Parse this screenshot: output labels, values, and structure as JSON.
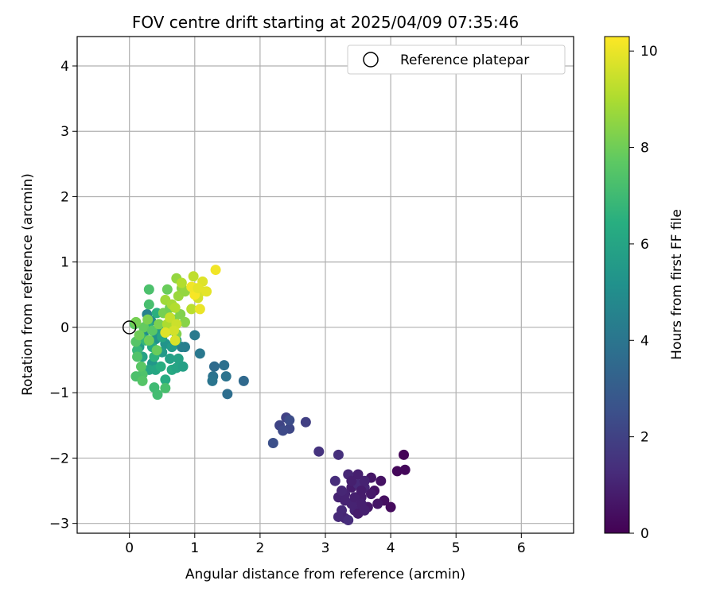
{
  "chart_data": {
    "type": "scatter",
    "title": "FOV centre drift starting at 2025/04/09 07:35:46",
    "xlabel": "Angular distance from reference (arcmin)",
    "ylabel": "Rotation from reference (arcmin)",
    "xlim": [
      -0.8,
      6.8
    ],
    "ylim": [
      -3.15,
      4.45
    ],
    "xticks": [
      0,
      1,
      2,
      3,
      4,
      5,
      6
    ],
    "yticks": [
      -3,
      -2,
      -1,
      0,
      1,
      2,
      3,
      4
    ],
    "grid": true,
    "legend": {
      "placement": "top-right",
      "entries": [
        {
          "label": "Reference platepar",
          "marker": "open-circle"
        }
      ]
    },
    "reference_point": {
      "x": 0,
      "y": 0
    },
    "colorbar": {
      "label": "Hours from first FF file",
      "colormap": "viridis",
      "range": [
        0,
        10.3
      ],
      "ticks": [
        0,
        2,
        4,
        6,
        8,
        10
      ]
    },
    "points": [
      {
        "x": 4.2,
        "y": -1.95,
        "h": 0.1
      },
      {
        "x": 4.1,
        "y": -2.2,
        "h": 0.2
      },
      {
        "x": 4.22,
        "y": -2.18,
        "h": 0.2
      },
      {
        "x": 4.0,
        "y": -2.75,
        "h": 0.3
      },
      {
        "x": 3.9,
        "y": -2.65,
        "h": 0.4
      },
      {
        "x": 3.85,
        "y": -2.35,
        "h": 0.5
      },
      {
        "x": 3.7,
        "y": -2.3,
        "h": 0.6
      },
      {
        "x": 3.75,
        "y": -2.5,
        "h": 0.5
      },
      {
        "x": 3.65,
        "y": -2.75,
        "h": 0.7
      },
      {
        "x": 3.55,
        "y": -2.6,
        "h": 0.8
      },
      {
        "x": 3.5,
        "y": -2.25,
        "h": 0.9
      },
      {
        "x": 3.45,
        "y": -2.8,
        "h": 1.0
      },
      {
        "x": 3.4,
        "y": -2.45,
        "h": 0.8
      },
      {
        "x": 3.35,
        "y": -2.25,
        "h": 1.1
      },
      {
        "x": 3.3,
        "y": -2.55,
        "h": 1.0
      },
      {
        "x": 3.25,
        "y": -2.8,
        "h": 1.2
      },
      {
        "x": 3.3,
        "y": -2.92,
        "h": 1.1
      },
      {
        "x": 3.2,
        "y": -2.6,
        "h": 1.0
      },
      {
        "x": 3.15,
        "y": -2.35,
        "h": 1.3
      },
      {
        "x": 3.5,
        "y": -2.4,
        "h": 1.2
      },
      {
        "x": 3.6,
        "y": -2.45,
        "h": 1.1
      },
      {
        "x": 3.55,
        "y": -2.7,
        "h": 0.9
      },
      {
        "x": 3.4,
        "y": -2.7,
        "h": 1.0
      },
      {
        "x": 3.5,
        "y": -2.85,
        "h": 0.8
      },
      {
        "x": 3.7,
        "y": -2.55,
        "h": 0.7
      },
      {
        "x": 3.6,
        "y": -2.35,
        "h": 1.0
      },
      {
        "x": 3.45,
        "y": -2.6,
        "h": 0.9
      },
      {
        "x": 3.25,
        "y": -2.5,
        "h": 1.1
      },
      {
        "x": 3.35,
        "y": -2.95,
        "h": 1.3
      },
      {
        "x": 3.2,
        "y": -2.9,
        "h": 1.2
      },
      {
        "x": 3.4,
        "y": -2.35,
        "h": 0.9
      },
      {
        "x": 3.55,
        "y": -2.5,
        "h": 0.8
      },
      {
        "x": 3.8,
        "y": -2.7,
        "h": 0.6
      },
      {
        "x": 3.6,
        "y": -2.8,
        "h": 0.9
      },
      {
        "x": 3.3,
        "y": -2.65,
        "h": 1.0
      },
      {
        "x": 3.2,
        "y": -1.95,
        "h": 1.4
      },
      {
        "x": 2.9,
        "y": -1.9,
        "h": 1.5
      },
      {
        "x": 2.7,
        "y": -1.45,
        "h": 1.9
      },
      {
        "x": 2.4,
        "y": -1.38,
        "h": 2.0
      },
      {
        "x": 2.45,
        "y": -1.55,
        "h": 2.2
      },
      {
        "x": 2.3,
        "y": -1.5,
        "h": 2.1
      },
      {
        "x": 2.35,
        "y": -1.58,
        "h": 2.3
      },
      {
        "x": 2.45,
        "y": -1.42,
        "h": 2.4
      },
      {
        "x": 2.2,
        "y": -1.77,
        "h": 2.5
      },
      {
        "x": 1.75,
        "y": -0.82,
        "h": 3.5
      },
      {
        "x": 1.5,
        "y": -1.02,
        "h": 3.7
      },
      {
        "x": 1.45,
        "y": -0.58,
        "h": 3.8
      },
      {
        "x": 1.3,
        "y": -0.6,
        "h": 3.6
      },
      {
        "x": 1.28,
        "y": -0.75,
        "h": 3.9
      },
      {
        "x": 1.48,
        "y": -0.75,
        "h": 3.9
      },
      {
        "x": 1.27,
        "y": -0.82,
        "h": 4.0
      },
      {
        "x": 1.08,
        "y": -0.4,
        "h": 4.1
      },
      {
        "x": 1.0,
        "y": -0.12,
        "h": 4.2
      },
      {
        "x": 0.85,
        "y": -0.3,
        "h": 4.3
      },
      {
        "x": 0.8,
        "y": -0.3,
        "h": 4.4
      },
      {
        "x": 0.27,
        "y": 0.2,
        "h": 4.5
      },
      {
        "x": 0.33,
        "y": 0.1,
        "h": 4.8
      },
      {
        "x": 0.25,
        "y": -0.05,
        "h": 5.0
      },
      {
        "x": 0.4,
        "y": -0.18,
        "h": 5.2
      },
      {
        "x": 0.55,
        "y": -0.25,
        "h": 5.3
      },
      {
        "x": 0.5,
        "y": -0.38,
        "h": 5.5
      },
      {
        "x": 0.65,
        "y": -0.3,
        "h": 5.6
      },
      {
        "x": 0.72,
        "y": -0.2,
        "h": 5.7
      },
      {
        "x": 0.62,
        "y": -0.48,
        "h": 5.8
      },
      {
        "x": 0.35,
        "y": -0.55,
        "h": 5.4
      },
      {
        "x": 0.15,
        "y": -0.3,
        "h": 5.6
      },
      {
        "x": 0.2,
        "y": -0.45,
        "h": 5.9
      },
      {
        "x": 0.45,
        "y": -0.05,
        "h": 5.7
      },
      {
        "x": 0.3,
        "y": -0.65,
        "h": 6.0
      },
      {
        "x": 0.4,
        "y": -0.65,
        "h": 6.1
      },
      {
        "x": 0.65,
        "y": -0.65,
        "h": 6.2
      },
      {
        "x": 0.72,
        "y": -0.62,
        "h": 6.0
      },
      {
        "x": 0.55,
        "y": -0.8,
        "h": 6.3
      },
      {
        "x": 0.82,
        "y": -0.6,
        "h": 5.8
      },
      {
        "x": 0.75,
        "y": -0.48,
        "h": 5.9
      },
      {
        "x": 0.5,
        "y": -0.15,
        "h": 6.1
      },
      {
        "x": 0.35,
        "y": -0.3,
        "h": 6.2
      },
      {
        "x": 0.18,
        "y": -0.15,
        "h": 6.3
      },
      {
        "x": 0.28,
        "y": 0.05,
        "h": 6.4
      },
      {
        "x": 0.42,
        "y": 0.22,
        "h": 6.5
      },
      {
        "x": 0.38,
        "y": -0.45,
        "h": 6.6
      },
      {
        "x": 0.6,
        "y": -0.05,
        "h": 6.5
      },
      {
        "x": 0.25,
        "y": -0.2,
        "h": 6.7
      },
      {
        "x": 0.12,
        "y": -0.35,
        "h": 6.8
      },
      {
        "x": 0.48,
        "y": -0.6,
        "h": 6.4
      },
      {
        "x": 0.38,
        "y": -0.92,
        "h": 7.0
      },
      {
        "x": 0.43,
        "y": -1.03,
        "h": 7.1
      },
      {
        "x": 0.55,
        "y": -0.93,
        "h": 7.2
      },
      {
        "x": 0.3,
        "y": 0.58,
        "h": 7.3
      },
      {
        "x": 0.3,
        "y": 0.35,
        "h": 7.2
      },
      {
        "x": 0.2,
        "y": -0.72,
        "h": 7.4
      },
      {
        "x": 0.1,
        "y": -0.75,
        "h": 7.3
      },
      {
        "x": 0.2,
        "y": -0.82,
        "h": 7.5
      },
      {
        "x": 0.18,
        "y": -0.6,
        "h": 7.6
      },
      {
        "x": 0.12,
        "y": -0.45,
        "h": 7.4
      },
      {
        "x": 0.1,
        "y": -0.22,
        "h": 7.5
      },
      {
        "x": 0.08,
        "y": 0.05,
        "h": 7.7
      },
      {
        "x": 0.22,
        "y": 0.0,
        "h": 7.8
      },
      {
        "x": 0.35,
        "y": -0.05,
        "h": 7.6
      },
      {
        "x": 0.42,
        "y": -0.35,
        "h": 7.9
      },
      {
        "x": 0.3,
        "y": -0.2,
        "h": 8.0
      },
      {
        "x": 0.52,
        "y": 0.22,
        "h": 8.1
      },
      {
        "x": 0.58,
        "y": 0.58,
        "h": 7.9
      },
      {
        "x": 0.62,
        "y": 0.3,
        "h": 8.0
      },
      {
        "x": 0.45,
        "y": 0.05,
        "h": 8.2
      },
      {
        "x": 0.68,
        "y": 0.12,
        "h": 8.1
      },
      {
        "x": 0.78,
        "y": 0.2,
        "h": 8.3
      },
      {
        "x": 0.85,
        "y": 0.08,
        "h": 8.4
      },
      {
        "x": 0.72,
        "y": -0.1,
        "h": 8.3
      },
      {
        "x": 0.28,
        "y": 0.12,
        "h": 8.2
      },
      {
        "x": 0.15,
        "y": -0.12,
        "h": 8.0
      },
      {
        "x": 0.1,
        "y": 0.08,
        "h": 8.1
      },
      {
        "x": 0.8,
        "y": 0.6,
        "h": 8.5
      },
      {
        "x": 0.72,
        "y": 0.75,
        "h": 8.6
      },
      {
        "x": 0.75,
        "y": 0.48,
        "h": 8.7
      },
      {
        "x": 0.85,
        "y": 0.55,
        "h": 8.6
      },
      {
        "x": 0.55,
        "y": 0.42,
        "h": 8.8
      },
      {
        "x": 0.65,
        "y": 0.35,
        "h": 8.9
      },
      {
        "x": 0.58,
        "y": 0.05,
        "h": 9.0
      },
      {
        "x": 0.7,
        "y": 0.3,
        "h": 9.1
      },
      {
        "x": 0.95,
        "y": 0.28,
        "h": 9.2
      },
      {
        "x": 0.98,
        "y": 0.78,
        "h": 9.3
      },
      {
        "x": 0.8,
        "y": 0.68,
        "h": 9.1
      },
      {
        "x": 0.62,
        "y": 0.15,
        "h": 9.4
      },
      {
        "x": 0.72,
        "y": 0.05,
        "h": 9.5
      },
      {
        "x": 0.68,
        "y": -0.05,
        "h": 9.6
      },
      {
        "x": 0.7,
        "y": -0.2,
        "h": 9.7
      },
      {
        "x": 0.55,
        "y": -0.08,
        "h": 9.8
      },
      {
        "x": 1.05,
        "y": 0.45,
        "h": 9.6
      },
      {
        "x": 1.1,
        "y": 0.55,
        "h": 9.7
      },
      {
        "x": 1.12,
        "y": 0.7,
        "h": 9.8
      },
      {
        "x": 1.18,
        "y": 0.55,
        "h": 9.9
      },
      {
        "x": 1.0,
        "y": 0.6,
        "h": 10.0
      },
      {
        "x": 1.08,
        "y": 0.28,
        "h": 10.0
      },
      {
        "x": 1.32,
        "y": 0.88,
        "h": 10.1
      },
      {
        "x": 1.0,
        "y": 0.5,
        "h": 10.2
      },
      {
        "x": 0.95,
        "y": 0.62,
        "h": 10.1
      },
      {
        "x": 1.05,
        "y": 0.6,
        "h": 9.9
      }
    ]
  }
}
